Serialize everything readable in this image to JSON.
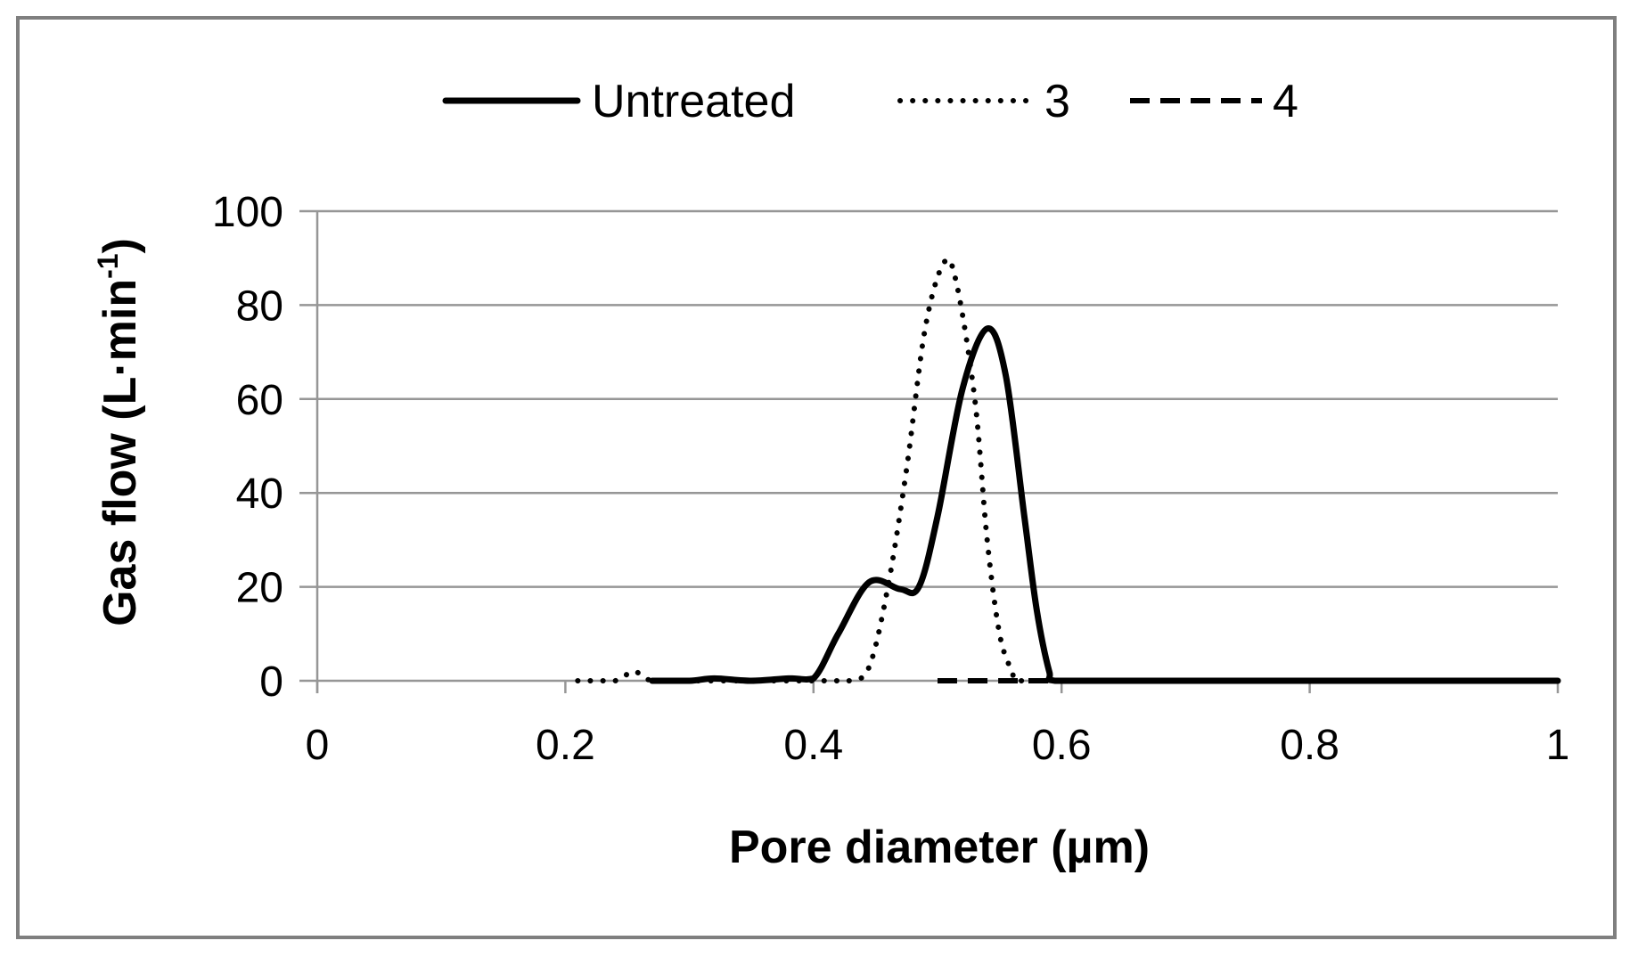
{
  "chart_data": {
    "type": "line",
    "title": "",
    "xlabel": "Pore diameter (µm)",
    "ylabel": {
      "main": "Gas flow (L·min",
      "sup": "-1",
      "close": ")"
    },
    "xlim": [
      0,
      1
    ],
    "ylim": [
      0,
      100
    ],
    "x_ticks": [
      0,
      0.2,
      0.4,
      0.6,
      0.8,
      1
    ],
    "x_tick_labels": [
      "0",
      "0.2",
      "0.4",
      "0.6",
      "0.8",
      "1"
    ],
    "y_ticks": [
      0,
      20,
      40,
      60,
      80,
      100
    ],
    "y_tick_labels": [
      "0",
      "20",
      "40",
      "60",
      "80",
      "100"
    ],
    "grid": "horizontal",
    "legend_position": "top",
    "series": [
      {
        "name": "Untreated",
        "style": "solid",
        "color": "#000000",
        "points": [
          [
            0.27,
            0
          ],
          [
            0.3,
            0
          ],
          [
            0.32,
            0.5
          ],
          [
            0.35,
            0
          ],
          [
            0.38,
            0.5
          ],
          [
            0.4,
            0.5
          ],
          [
            0.42,
            10
          ],
          [
            0.445,
            21
          ],
          [
            0.47,
            19.5
          ],
          [
            0.485,
            20
          ],
          [
            0.5,
            35
          ],
          [
            0.52,
            62
          ],
          [
            0.54,
            75
          ],
          [
            0.555,
            65
          ],
          [
            0.57,
            35
          ],
          [
            0.58,
            15
          ],
          [
            0.59,
            2
          ],
          [
            0.595,
            0
          ],
          [
            0.65,
            0
          ],
          [
            0.8,
            0
          ],
          [
            1.0,
            0
          ]
        ]
      },
      {
        "name": "3",
        "style": "dotted",
        "color": "#000000",
        "points": [
          [
            0.21,
            0
          ],
          [
            0.24,
            0
          ],
          [
            0.255,
            2
          ],
          [
            0.27,
            0
          ],
          [
            0.3,
            0
          ],
          [
            0.4,
            0
          ],
          [
            0.43,
            0
          ],
          [
            0.445,
            3
          ],
          [
            0.46,
            20
          ],
          [
            0.475,
            45
          ],
          [
            0.49,
            75
          ],
          [
            0.505,
            89
          ],
          [
            0.515,
            85
          ],
          [
            0.53,
            60
          ],
          [
            0.54,
            30
          ],
          [
            0.55,
            10
          ],
          [
            0.56,
            2
          ],
          [
            0.565,
            0
          ],
          [
            0.6,
            0
          ]
        ]
      },
      {
        "name": "4",
        "style": "dashed",
        "color": "#000000",
        "points": [
          [
            0.5,
            0
          ],
          [
            0.55,
            0
          ],
          [
            0.6,
            0
          ],
          [
            0.65,
            0
          ]
        ]
      }
    ]
  }
}
